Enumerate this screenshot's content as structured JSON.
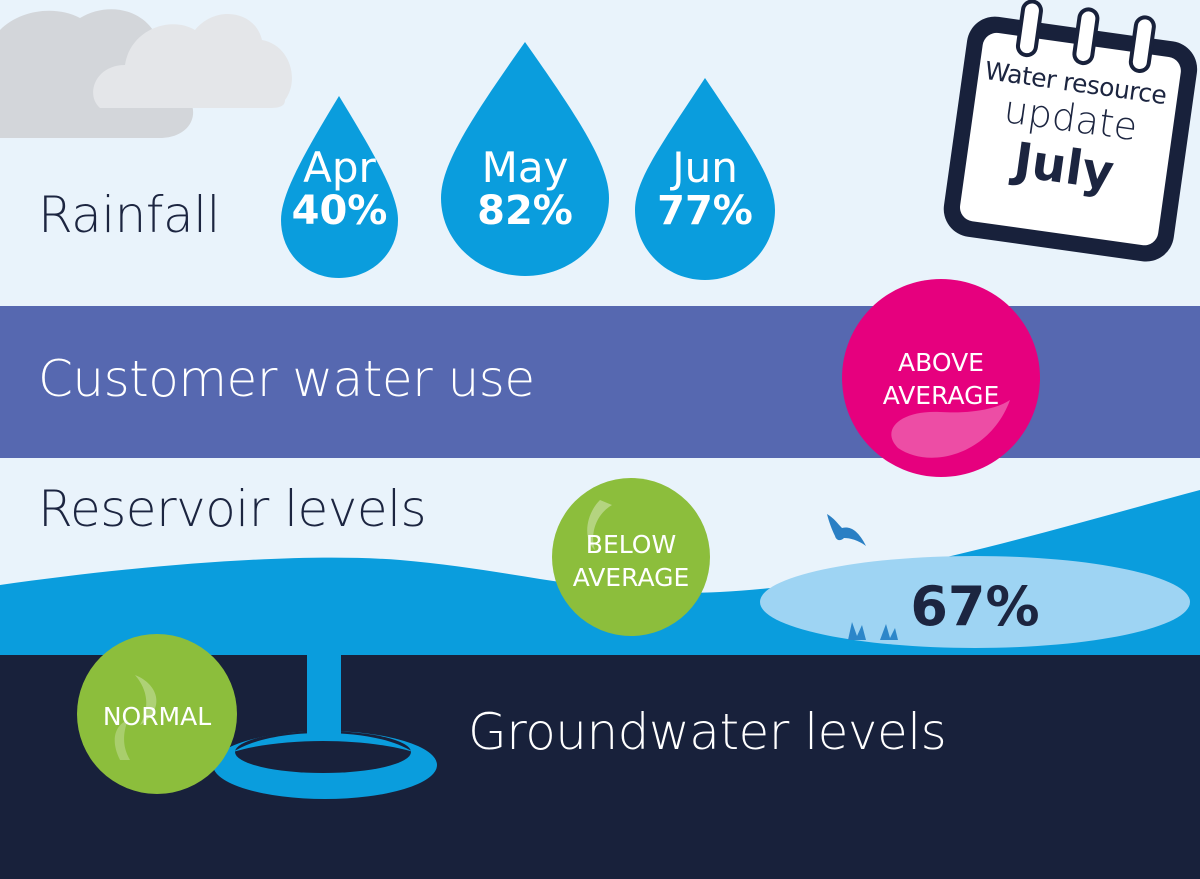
{
  "calendar": {
    "line1": "Water resource",
    "line2": "update",
    "month": "July"
  },
  "rainfall": {
    "label": "Rainfall",
    "drops": [
      {
        "month": "Apr",
        "percent": "40%"
      },
      {
        "month": "May",
        "percent": "82%"
      },
      {
        "month": "Jun",
        "percent": "77%"
      }
    ]
  },
  "customer_use": {
    "label": "Customer water use",
    "status": "ABOVE AVERAGE"
  },
  "reservoir": {
    "label": "Reservoir levels",
    "status": "BELOW AVERAGE",
    "percent": "67%"
  },
  "groundwater": {
    "label": "Groundwater levels",
    "status": "NORMAL"
  },
  "colors": {
    "sky": "#e9f3fb",
    "drop_blue": "#0a9ddd",
    "band_purple": "#5668b0",
    "reservoir_blue": "#0a9ddd",
    "lake_light": "#9ed4f3",
    "ground_navy": "#18213b",
    "bubble_magenta": "#e6007e",
    "bubble_green": "#8cbe3c",
    "text_dark": "#1c2540"
  }
}
